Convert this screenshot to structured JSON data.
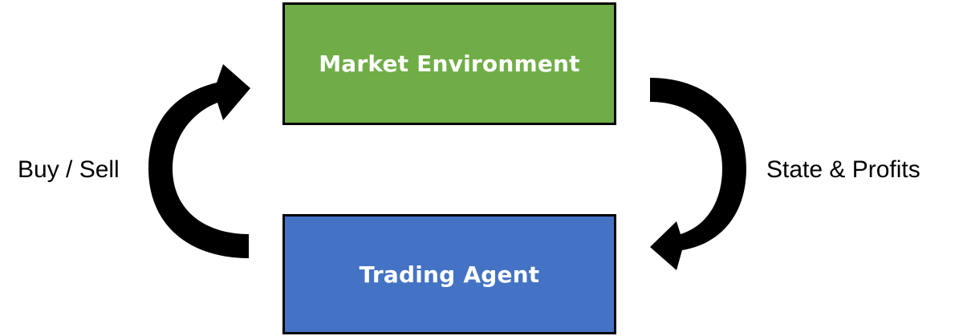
{
  "boxes": {
    "environment": {
      "label": "Market Environment",
      "color": "#70ad47"
    },
    "agent": {
      "label": "Trading Agent",
      "color": "#4472c4"
    }
  },
  "edges": {
    "agent_to_environment": {
      "label": "Buy / Sell"
    },
    "environment_to_agent": {
      "label": "State & Profits"
    }
  },
  "arrow_color": "#000000"
}
